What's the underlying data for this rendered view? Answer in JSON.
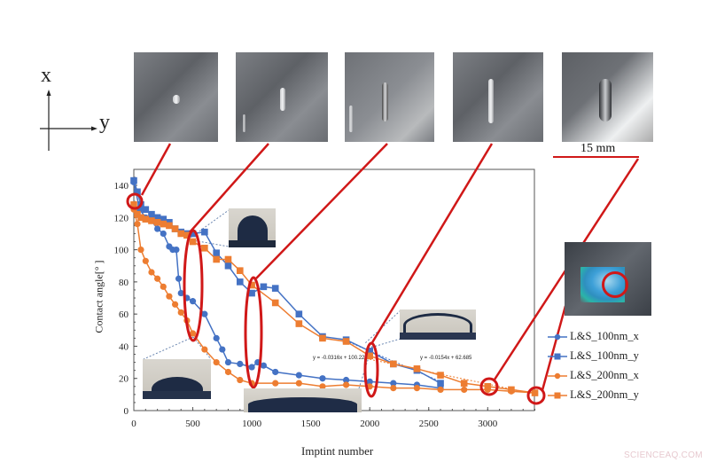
{
  "figure": {
    "axes_indicator": {
      "x_label": "x",
      "y_label": "y"
    },
    "scale_bar": {
      "label": "15 mm"
    },
    "watermark": "SCIENCEAQ.COM",
    "trendlines": [
      {
        "label": "y = -0.0316x + 100.22"
      },
      {
        "label": "y = -0.0154x + 62.685"
      }
    ],
    "photos": [
      {
        "name": "surface-photo-1"
      },
      {
        "name": "surface-photo-2"
      },
      {
        "name": "surface-photo-3"
      },
      {
        "name": "surface-photo-4"
      },
      {
        "name": "surface-photo-5"
      }
    ]
  },
  "chart_data": {
    "type": "line",
    "title": "",
    "xlabel": "Imptint number",
    "ylabel": "Contact angle[° ]",
    "xlim": [
      0,
      3400
    ],
    "ylim": [
      0,
      150
    ],
    "xticks": [
      0,
      500,
      1000,
      1500,
      2000,
      2500,
      3000
    ],
    "yticks": [
      0,
      20,
      40,
      60,
      80,
      100,
      120,
      140
    ],
    "grid": false,
    "legend_position": "right",
    "series": [
      {
        "name": "L&S_100nm_x",
        "color": "#4472c4",
        "marker": "circle",
        "x": [
          0,
          50,
          100,
          150,
          200,
          250,
          300,
          330,
          360,
          380,
          400,
          450,
          500,
          600,
          700,
          750,
          800,
          900,
          1000,
          1050,
          1100,
          1200,
          1400,
          1600,
          1800,
          2000,
          2200,
          2400,
          2600
        ],
        "y": [
          142,
          125,
          120,
          118,
          113,
          110,
          102,
          100,
          100,
          82,
          73,
          70,
          68,
          60,
          45,
          38,
          30,
          29,
          27,
          30,
          28,
          24,
          22,
          20,
          19,
          18,
          17,
          16,
          14
        ]
      },
      {
        "name": "L&S_100nm_y",
        "color": "#4472c4",
        "marker": "square",
        "x": [
          0,
          30,
          60,
          100,
          150,
          200,
          250,
          300,
          350,
          400,
          450,
          500,
          600,
          700,
          800,
          900,
          1000,
          1100,
          1200,
          1400,
          1600,
          1800,
          2000,
          2200,
          2400,
          2600
        ],
        "y": [
          143,
          136,
          128,
          125,
          122,
          120,
          119,
          117,
          113,
          111,
          110,
          110,
          111,
          98,
          90,
          80,
          73,
          77,
          76,
          60,
          46,
          44,
          37,
          29,
          25,
          17
        ]
      },
      {
        "name": "L&S_200nm_x",
        "color": "#ed7d31",
        "marker": "circle",
        "x": [
          0,
          30,
          60,
          100,
          150,
          200,
          250,
          300,
          350,
          400,
          450,
          500,
          600,
          700,
          800,
          900,
          1000,
          1200,
          1400,
          1600,
          1800,
          2000,
          2200,
          2400,
          2600,
          2800,
          3000,
          3200,
          3400
        ],
        "y": [
          125,
          116,
          100,
          93,
          86,
          82,
          77,
          71,
          66,
          61,
          56,
          48,
          38,
          30,
          24,
          19,
          17,
          17,
          17,
          15,
          16,
          15,
          14,
          14,
          13,
          13,
          13,
          12,
          11
        ]
      },
      {
        "name": "L&S_200nm_y",
        "color": "#ed7d31",
        "marker": "square",
        "x": [
          0,
          30,
          60,
          100,
          150,
          200,
          250,
          300,
          350,
          400,
          450,
          500,
          600,
          700,
          800,
          900,
          1000,
          1200,
          1400,
          1600,
          1800,
          2000,
          2200,
          2400,
          2600,
          2800,
          3000,
          3200,
          3400
        ],
        "y": [
          128,
          122,
          120,
          119,
          118,
          117,
          116,
          115,
          113,
          110,
          109,
          105,
          101,
          94,
          94,
          87,
          78,
          67,
          54,
          45,
          43,
          34,
          29,
          26,
          22,
          17,
          15,
          13,
          11
        ]
      }
    ],
    "annotations": [
      "Red circles/ellipses linking data points to surface photos at ~0, ~500, ~1000, ~2000, ~3000 and ~3400 imprints",
      "Droplet photo insets at ~450, ~1000 (flat), ~1950, ~2600 imprints",
      "Trendline y = -0.0316x + 100.22",
      "Trendline y = -0.0154x + 62.685"
    ]
  }
}
